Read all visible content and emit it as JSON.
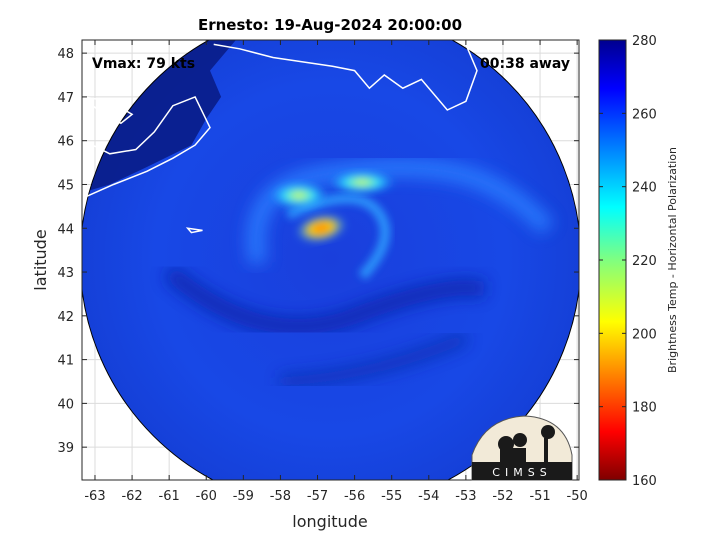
{
  "chart_data": {
    "type": "heatmap",
    "title": "Ernesto: 19-Aug-2024 20:00:00",
    "xlabel": "longitude",
    "ylabel": "latitude",
    "xlim": [
      -63.35,
      -49.95
    ],
    "ylim": [
      38.25,
      48.3
    ],
    "xticks": [
      -63,
      -62,
      -61,
      -60,
      -59,
      -58,
      -57,
      -56,
      -55,
      -54,
      -53,
      -52,
      -51,
      -50
    ],
    "yticks": [
      39,
      40,
      41,
      42,
      43,
      44,
      45,
      46,
      47,
      48
    ],
    "grid": true,
    "annotations": {
      "vmax": "Vmax: 79 kts",
      "away": "00:38 away",
      "logo": "CIMSS"
    },
    "colorbar": {
      "label": "Brightness Temp - Horizontal Polarization",
      "range": [
        160,
        280
      ],
      "ticks": [
        280,
        260,
        240,
        220,
        200,
        180,
        160
      ],
      "colormap": "jet"
    },
    "storm_center": {
      "lon": -56.8,
      "lat": 43.4
    },
    "coldest_core": {
      "lon": -56.9,
      "lat": 44.0,
      "value": 195
    },
    "swath": {
      "center_lon": -56.65,
      "center_lat": 43.3,
      "radius_deg_lon": 6.75
    },
    "background_value": 262
  }
}
